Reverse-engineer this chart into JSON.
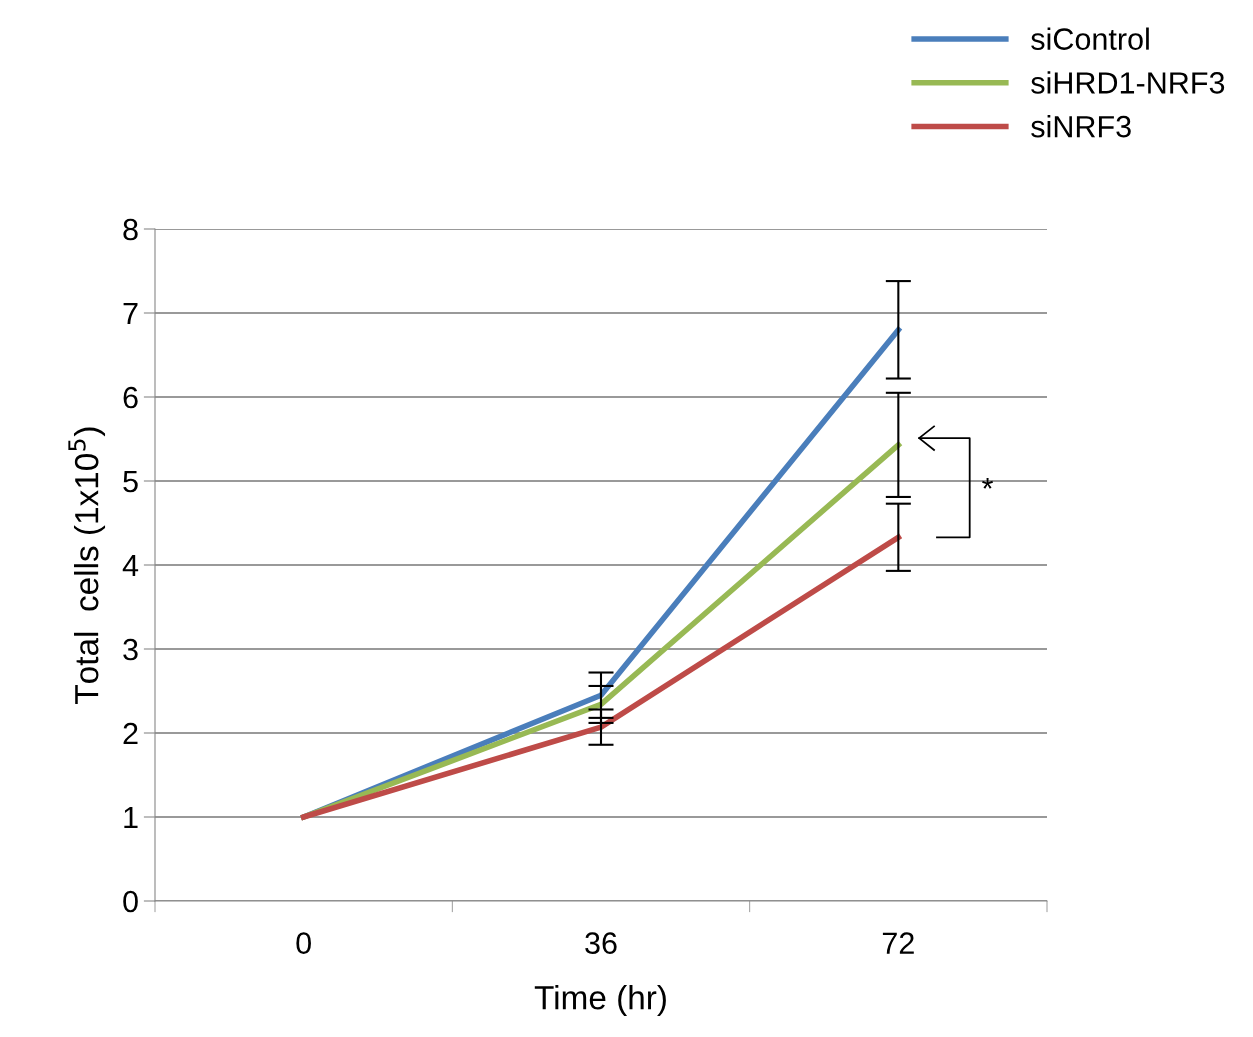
{
  "chart_data": {
    "type": "line",
    "xlabel": "Time (hr)",
    "ylabel": "Total  cells (1x10$^{5}$)",
    "categories": [
      "0",
      "36",
      "72"
    ],
    "series": [
      {
        "name": "siControl",
        "color": "#4a7ebb",
        "values": [
          1,
          2.45,
          6.8
        ],
        "errors": [
          null,
          0.27,
          0.58
        ]
      },
      {
        "name": "siHRD1-NRF3",
        "color": "#98b954",
        "values": [
          1,
          2.34,
          5.43
        ],
        "errors": [
          null,
          0.22,
          0.62
        ]
      },
      {
        "name": "siNRF3",
        "color": "#be4b48",
        "values": [
          1,
          2.07,
          4.33
        ],
        "errors": [
          null,
          0.21,
          0.4
        ]
      }
    ],
    "ylim": [
      0,
      8
    ],
    "yticks": [
      0,
      1,
      2,
      3,
      4,
      5,
      6,
      7,
      8
    ],
    "grid": "y",
    "legend": "top right",
    "marker": "none",
    "line_style": "solid",
    "annotations": [
      "*"
    ]
  }
}
